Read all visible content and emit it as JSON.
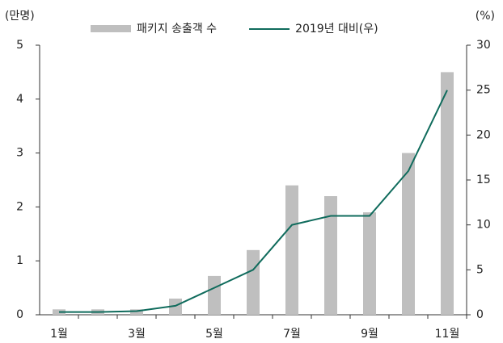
{
  "chart_data": {
    "type": "bar-line",
    "y_label": "(만명)",
    "y2_label": "(%)",
    "categories": [
      "1월",
      null,
      "3월",
      null,
      "5월",
      null,
      "7월",
      null,
      "9월",
      null,
      "11월"
    ],
    "series": [
      {
        "name": "패키지 송출객 수",
        "type": "bar",
        "color": "#bfbfbf",
        "values": [
          0.1,
          0.1,
          0.1,
          0.3,
          0.72,
          1.2,
          2.4,
          2.2,
          1.9,
          3.0,
          4.5
        ]
      },
      {
        "name": "2019년 대비(우)",
        "type": "line",
        "axis": "y2",
        "color": "#0f6b5c",
        "values": [
          0.3,
          0.3,
          0.4,
          1.0,
          3.0,
          5.0,
          10.0,
          11.0,
          11.0,
          16.0,
          25.0
        ]
      }
    ],
    "ylim": [
      0,
      5
    ],
    "yticks": [
      0,
      1,
      2,
      3,
      4,
      5
    ],
    "y2lim": [
      0,
      30
    ],
    "y2ticks": [
      0,
      5,
      10,
      15,
      20,
      25,
      30
    ]
  }
}
